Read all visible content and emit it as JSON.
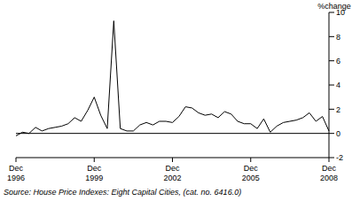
{
  "chart_data": {
    "type": "line",
    "y_label": "%change",
    "source": "Source: House Price Indexes: Eight Capital Cities, (cat. no. 6416.0)",
    "categories": [
      "Dec 1996",
      null,
      null,
      null,
      null,
      null,
      null,
      null,
      null,
      null,
      null,
      null,
      "Dec 1999",
      null,
      null,
      null,
      null,
      null,
      null,
      null,
      null,
      null,
      null,
      null,
      "Dec 2002",
      null,
      null,
      null,
      null,
      null,
      null,
      null,
      null,
      null,
      null,
      null,
      "Dec 2005",
      null,
      null,
      null,
      null,
      null,
      null,
      null,
      null,
      null,
      null,
      null,
      "Dec 2008"
    ],
    "values": [
      -0.2,
      0.1,
      0.0,
      0.5,
      0.2,
      0.4,
      0.5,
      0.6,
      0.8,
      1.3,
      1.0,
      1.9,
      3.0,
      1.5,
      0.4,
      9.3,
      0.4,
      0.2,
      0.2,
      0.7,
      0.9,
      0.7,
      1.0,
      1.0,
      0.9,
      1.4,
      2.2,
      2.1,
      1.7,
      1.5,
      1.6,
      1.3,
      1.8,
      1.6,
      1.0,
      0.8,
      0.8,
      0.4,
      1.2,
      0.1,
      0.6,
      0.9,
      1.0,
      1.1,
      1.3,
      1.7,
      1.0,
      1.4,
      0.2
    ],
    "color": "#000000",
    "ylim": [
      -2,
      10
    ],
    "yticks": [
      -2,
      0,
      2,
      4,
      6,
      8,
      10
    ],
    "grid": false
  }
}
